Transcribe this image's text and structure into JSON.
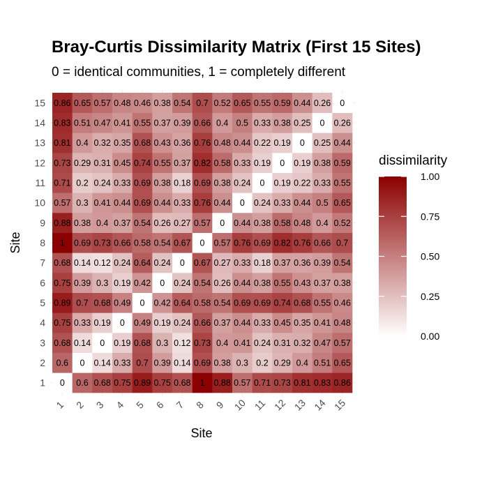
{
  "chart_data": {
    "type": "heatmap",
    "title": "Bray-Curtis Dissimilarity Matrix (First 15 Sites)",
    "subtitle": "0 = identical communities, 1 = completely different",
    "xlabel": "Site",
    "ylabel": "Site",
    "sites": [
      "1",
      "2",
      "3",
      "4",
      "5",
      "6",
      "7",
      "8",
      "9",
      "10",
      "11",
      "12",
      "13",
      "14",
      "15"
    ],
    "matrix": [
      [
        0,
        0.6,
        0.68,
        0.75,
        0.89,
        0.75,
        0.68,
        1,
        0.88,
        0.57,
        0.71,
        0.73,
        0.81,
        0.83,
        0.86
      ],
      [
        0.6,
        0,
        0.14,
        0.33,
        0.7,
        0.39,
        0.14,
        0.69,
        0.38,
        0.3,
        0.2,
        0.29,
        0.4,
        0.51,
        0.65
      ],
      [
        0.68,
        0.14,
        0,
        0.19,
        0.68,
        0.3,
        0.12,
        0.73,
        0.4,
        0.41,
        0.24,
        0.31,
        0.32,
        0.47,
        0.57
      ],
      [
        0.75,
        0.33,
        0.19,
        0,
        0.49,
        0.19,
        0.24,
        0.66,
        0.37,
        0.44,
        0.33,
        0.45,
        0.35,
        0.41,
        0.48
      ],
      [
        0.89,
        0.7,
        0.68,
        0.49,
        0,
        0.42,
        0.64,
        0.58,
        0.54,
        0.69,
        0.69,
        0.74,
        0.68,
        0.55,
        0.46
      ],
      [
        0.75,
        0.39,
        0.3,
        0.19,
        0.42,
        0,
        0.24,
        0.54,
        0.26,
        0.44,
        0.38,
        0.55,
        0.43,
        0.37,
        0.38
      ],
      [
        0.68,
        0.14,
        0.12,
        0.24,
        0.64,
        0.24,
        0,
        0.67,
        0.27,
        0.33,
        0.18,
        0.37,
        0.36,
        0.39,
        0.54
      ],
      [
        1,
        0.69,
        0.73,
        0.66,
        0.58,
        0.54,
        0.67,
        0,
        0.57,
        0.76,
        0.69,
        0.82,
        0.76,
        0.66,
        0.7
      ],
      [
        0.88,
        0.38,
        0.4,
        0.37,
        0.54,
        0.26,
        0.27,
        0.57,
        0,
        0.44,
        0.38,
        0.58,
        0.48,
        0.4,
        0.52
      ],
      [
        0.57,
        0.3,
        0.41,
        0.44,
        0.69,
        0.44,
        0.33,
        0.76,
        0.44,
        0,
        0.24,
        0.33,
        0.44,
        0.5,
        0.65
      ],
      [
        0.71,
        0.2,
        0.24,
        0.33,
        0.69,
        0.38,
        0.18,
        0.69,
        0.38,
        0.24,
        0,
        0.19,
        0.22,
        0.33,
        0.55
      ],
      [
        0.73,
        0.29,
        0.31,
        0.45,
        0.74,
        0.55,
        0.37,
        0.82,
        0.58,
        0.33,
        0.19,
        0,
        0.19,
        0.38,
        0.59
      ],
      [
        0.81,
        0.4,
        0.32,
        0.35,
        0.68,
        0.43,
        0.36,
        0.76,
        0.48,
        0.44,
        0.22,
        0.19,
        0,
        0.25,
        0.44
      ],
      [
        0.83,
        0.51,
        0.47,
        0.41,
        0.55,
        0.37,
        0.39,
        0.66,
        0.4,
        0.5,
        0.33,
        0.38,
        0.25,
        0,
        0.26
      ],
      [
        0.86,
        0.65,
        0.57,
        0.48,
        0.46,
        0.38,
        0.54,
        0.7,
        0.52,
        0.65,
        0.55,
        0.59,
        0.44,
        0.26,
        0
      ]
    ],
    "zlim": [
      0,
      1
    ],
    "legend": {
      "title": "dissimilarity",
      "ticks": [
        "1.00",
        "0.75",
        "0.50",
        "0.25",
        "0.00"
      ],
      "tick_values": [
        1,
        0.75,
        0.5,
        0.25,
        0
      ],
      "placement": "right"
    },
    "colors": {
      "low": "#ffffff",
      "high": "#8b0000"
    },
    "grid": true
  }
}
